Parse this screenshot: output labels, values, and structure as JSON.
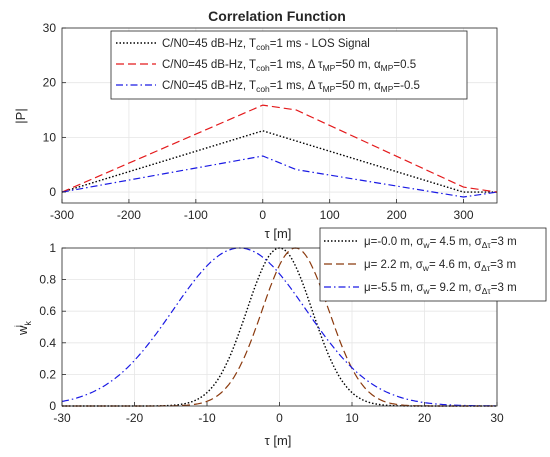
{
  "chart_data": [
    {
      "type": "line",
      "title": "Correlation Function",
      "xlabel": "τ [m]",
      "ylabel": "|P|",
      "xlim": [
        -300,
        350
      ],
      "ylim": [
        -2,
        30
      ],
      "xticks": [
        -300,
        -200,
        -100,
        0,
        100,
        200,
        300
      ],
      "yticks": [
        0,
        10,
        20,
        30
      ],
      "grid": true,
      "legend_position": "top-center",
      "series": [
        {
          "name": "C/N0=45 dB-Hz, T_coh=1 ms - LOS Signal",
          "style": "dotted",
          "color": "#000000",
          "x": [
            -300,
            0,
            300,
            350
          ],
          "y": [
            0,
            11.2,
            0,
            0
          ]
        },
        {
          "name": "C/N0=45 dB-Hz, T_coh=1 ms, Δ τ_MP=50 m, α_MP=0.5",
          "style": "dashed",
          "color": "#e41a1c",
          "x": [
            -300,
            0,
            50,
            300,
            350
          ],
          "y": [
            0,
            15.9,
            15.0,
            0.9,
            0
          ]
        },
        {
          "name": "C/N0=45 dB-Hz, T_coh=1 ms, Δ τ_MP=50 m, α_MP=-0.5",
          "style": "dashdot",
          "color": "#1a1ae4",
          "x": [
            -300,
            0,
            50,
            300,
            350
          ],
          "y": [
            0,
            6.6,
            4.1,
            -0.9,
            0
          ]
        }
      ]
    },
    {
      "type": "line",
      "xlabel": "τ [m]",
      "ylabel": "w_k^j",
      "xlim": [
        -30,
        30
      ],
      "ylim": [
        0,
        1
      ],
      "xticks": [
        -30,
        -20,
        -10,
        0,
        10,
        20,
        30
      ],
      "yticks": [
        0,
        0.2,
        0.4,
        0.6,
        0.8,
        1
      ],
      "grid": true,
      "legend_position": "top-right",
      "series": [
        {
          "name": "μ=-0.0 m, σ_w= 4.5 m, σ_Δτ=3 m",
          "style": "dotted",
          "color": "#000000",
          "mu": 0.0,
          "sigma": 4.5
        },
        {
          "name": "μ= 2.2 m, σ_w= 4.6 m, σ_Δτ=3 m",
          "style": "dashed",
          "color": "#8b3a0e",
          "mu": 2.2,
          "sigma": 4.6
        },
        {
          "name": "μ=-5.5 m, σ_w= 9.2 m, σ_Δτ=3 m",
          "style": "dashdot",
          "color": "#1a1ae4",
          "mu": -5.5,
          "sigma": 9.2
        }
      ]
    }
  ],
  "legend1": {
    "e1": {
      "a": "C/N0=45 dB-Hz, T",
      "b": "coh",
      "c": "=1 ms - LOS Signal"
    },
    "e2": {
      "a": "C/N0=45 dB-Hz, T",
      "b": "coh",
      "c": "=1 ms, Δ τ",
      "d": "MP",
      "e": "=50 m, α",
      "f": "MP",
      "g": "=0.5"
    },
    "e3": {
      "a": "C/N0=45 dB-Hz, T",
      "b": "coh",
      "c": "=1 ms, Δ τ",
      "d": "MP",
      "e": "=50 m, α",
      "f": "MP",
      "g": "=-0.5"
    }
  },
  "legend2": {
    "e1": {
      "a": "μ=-0.0 m, σ",
      "b": "w",
      "c": "= 4.5 m, σ",
      "d": "Δτ",
      "e": "=3 m"
    },
    "e2": {
      "a": "μ= 2.2 m, σ",
      "b": "w",
      "c": "= 4.6 m, σ",
      "d": "Δτ",
      "e": "=3 m"
    },
    "e3": {
      "a": "μ=-5.5 m, σ",
      "b": "w",
      "c": "= 9.2 m, σ",
      "d": "Δτ",
      "e": "=3 m"
    }
  },
  "ylabel2": {
    "base": "w",
    "sub": "k",
    "sup": "j"
  }
}
